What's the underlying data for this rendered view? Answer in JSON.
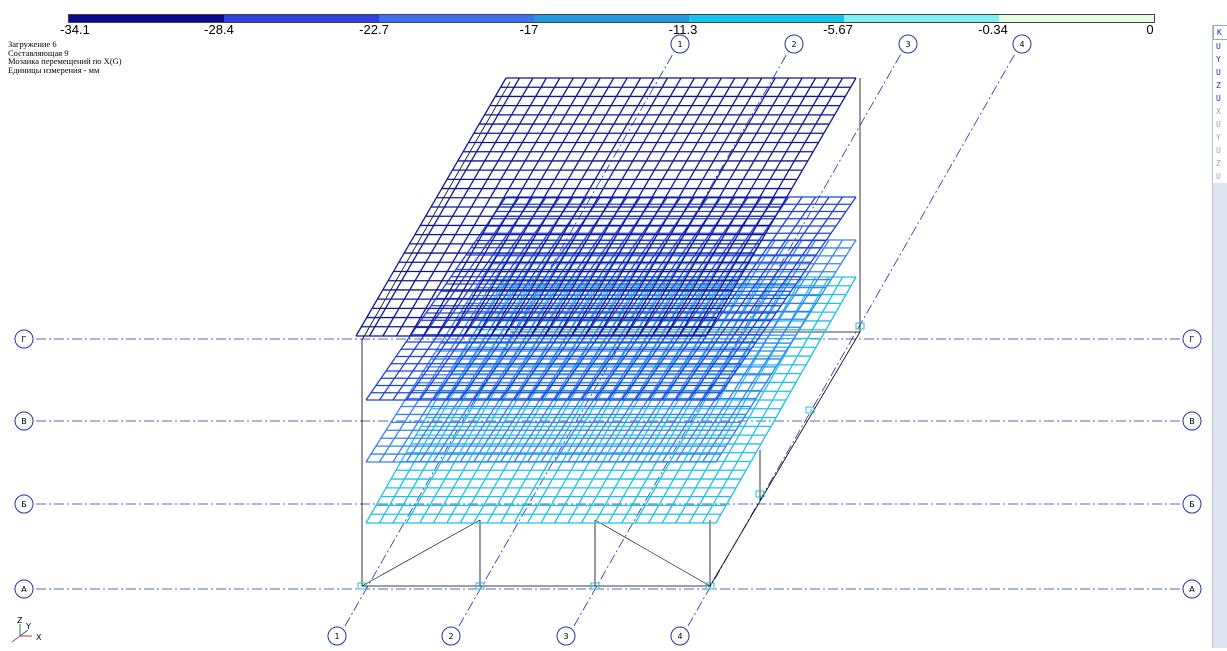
{
  "legend": {
    "labels": [
      "-34.1",
      "-28.4",
      "-22.7",
      "-17",
      "-11.3",
      "-5.67",
      "-0.34",
      "0"
    ],
    "colors": [
      "#0a0a8c",
      "#2f3fe0",
      "#3d6ff0",
      "#1f9ae0",
      "#18c4f0",
      "#7ff0f0",
      "#e8fbe6"
    ]
  },
  "info": {
    "line1": "Загружение 6",
    "line2": "Составляющая 9",
    "line3": "Мозаика перемещений по X(G)",
    "line4": "Единицы измерения - мм"
  },
  "axes_bottom": [
    "1",
    "2",
    "3",
    "4"
  ],
  "axes_top": [
    "1",
    "2",
    "3",
    "4"
  ],
  "axes_left": [
    "Г",
    "В",
    "Б",
    "А"
  ],
  "axes_right": [
    "Г",
    "В",
    "Б",
    "А"
  ],
  "side_panel": {
    "items": [
      "K",
      "U",
      "Y",
      "U",
      "Z",
      "U",
      "X",
      "U",
      "Y",
      "U",
      "Z",
      "U"
    ]
  },
  "coord_icon": {
    "z": "Z",
    "y": "Y",
    "x": "X"
  },
  "colors": {
    "grid_axis": "#2233aa",
    "frame": "#000000"
  }
}
